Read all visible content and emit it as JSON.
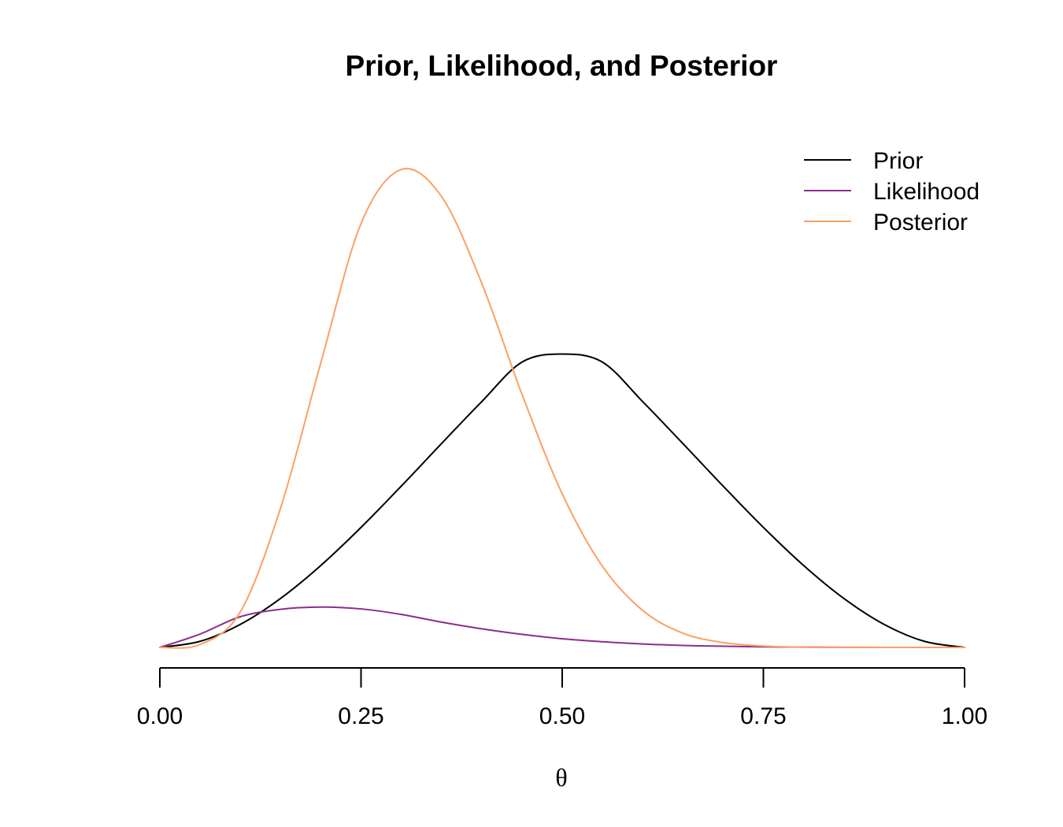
{
  "chart_data": {
    "type": "line",
    "title": "Prior, Likelihood, and Posterior",
    "xlabel": "θ",
    "ylabel": "",
    "xlim": [
      0,
      1
    ],
    "ylim": [
      0,
      3.4
    ],
    "x_ticks": [
      0,
      0.25,
      0.5,
      0.75,
      1
    ],
    "x_tick_labels": [
      "0.00",
      "0.25",
      "0.50",
      "0.75",
      "1.00"
    ],
    "y_axis_shown": false,
    "grid": false,
    "legend_position": "top-right",
    "series": [
      {
        "name": "Prior",
        "color": "#000000",
        "x": [
          0,
          0.05,
          0.1,
          0.15,
          0.2,
          0.25,
          0.3,
          0.35,
          0.4,
          0.45,
          0.5,
          0.55,
          0.6,
          0.65,
          0.7,
          0.75,
          0.8,
          0.85,
          0.9,
          0.95,
          1
        ],
        "y": [
          0,
          0.0428,
          0.162,
          0.3442,
          0.576,
          0.8438,
          1.134,
          1.4331,
          1.728,
          2.0059,
          2.0625,
          2.0059,
          1.728,
          1.4331,
          1.134,
          0.8438,
          0.576,
          0.3442,
          0.162,
          0.0428,
          0
        ]
      },
      {
        "name": "Likelihood",
        "color": "#8B2E8C",
        "x": [
          0,
          0.05,
          0.1,
          0.15,
          0.2,
          0.25,
          0.3,
          0.35,
          0.4,
          0.45,
          0.5,
          0.55,
          0.6,
          0.65,
          0.7,
          0.75,
          0.8,
          0.85,
          0.9,
          0.95,
          1
        ],
        "y": [
          0,
          0.094,
          0.216,
          0.268,
          0.284,
          0.271,
          0.232,
          0.178,
          0.131,
          0.092,
          0.061,
          0.04,
          0.024,
          0.014,
          0.008,
          0.004,
          0.002,
          0.001,
          0,
          0,
          0
        ]
      },
      {
        "name": "Posterior",
        "color": "#FCA065",
        "x": [
          0,
          0.05,
          0.1,
          0.15,
          0.2,
          0.25,
          0.3,
          0.35,
          0.4,
          0.45,
          0.5,
          0.55,
          0.6,
          0.65,
          0.7,
          0.75,
          0.8,
          0.85,
          0.9,
          0.95,
          1
        ],
        "y": [
          0,
          0.02,
          0.25,
          0.98,
          2.0,
          2.98,
          3.36,
          3.17,
          2.56,
          1.78,
          1.08,
          0.57,
          0.26,
          0.1,
          0.034,
          0.01,
          0.002,
          0,
          0,
          0,
          0
        ]
      }
    ]
  }
}
